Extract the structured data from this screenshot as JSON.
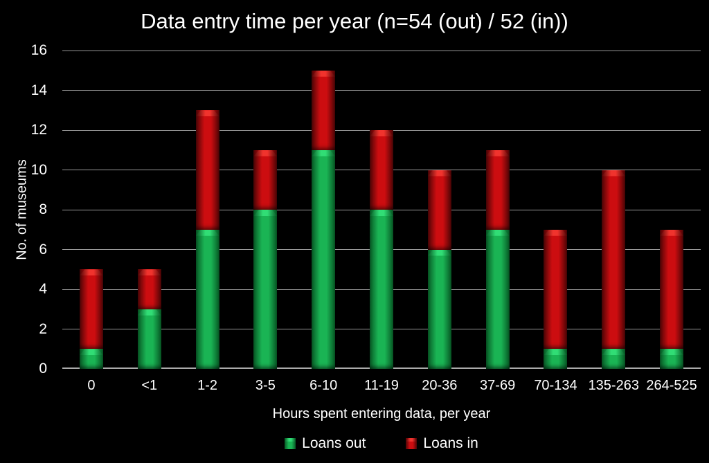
{
  "title": "Data entry time per year (n=54 (out) / 52 (in))",
  "chart_data": {
    "type": "bar",
    "stacked": true,
    "title": "Data entry time per year (n=54 (out) / 52 (in))",
    "categories": [
      "0",
      "<1",
      "1-2",
      "3-5",
      "6-10",
      "11-19",
      "20-36",
      "37-69",
      "70-134",
      "135-263",
      "264-525"
    ],
    "series": [
      {
        "name": "Loans out",
        "values": [
          1,
          3,
          7,
          8,
          11,
          8,
          6,
          7,
          1,
          1,
          1
        ],
        "total": 54,
        "color": "#1ab454",
        "edge_color": "#075925",
        "cap_color": "#31dd75"
      },
      {
        "name": "Loans in",
        "values": [
          4,
          2,
          6,
          3,
          4,
          4,
          4,
          4,
          6,
          9,
          6
        ],
        "total": 52,
        "color": "#cc0d10",
        "edge_color": "#4d0506",
        "cap_color": "#f0332d"
      }
    ],
    "xlabel": "Hours spent entering data, per year",
    "ylabel": "No. of museums",
    "ylim": [
      0,
      16
    ],
    "ytick_step": 2,
    "yticks": [
      0,
      2,
      4,
      6,
      8,
      10,
      12,
      14,
      16
    ],
    "grid": true,
    "legend_position": "bottom",
    "colors": {
      "background": "#000000",
      "text": "#ffffff",
      "gridline": "#9a9a9a"
    }
  }
}
